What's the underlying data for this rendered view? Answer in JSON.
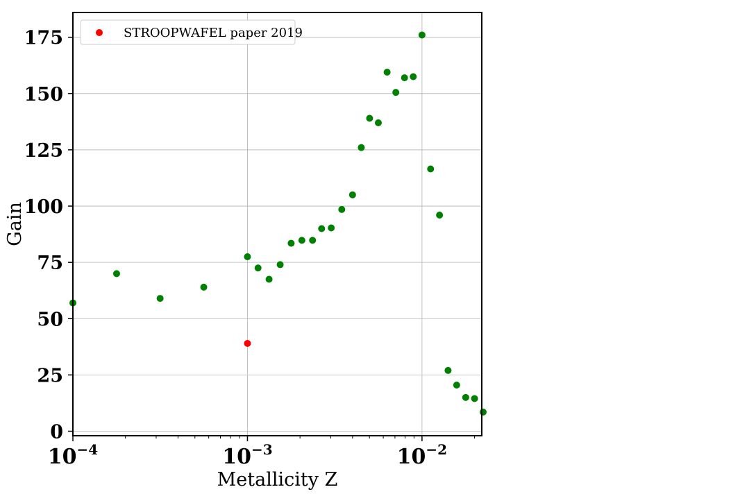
{
  "chart_data": {
    "type": "scatter",
    "xlabel": "Metallicity Z",
    "ylabel": "Gain",
    "xscale": "log",
    "xlim": [
      0.0001,
      0.022
    ],
    "ylim": [
      -2,
      186
    ],
    "grid": true,
    "legend": {
      "placement": "top-left",
      "entries": [
        "STROOPWAFEL paper 2019"
      ]
    },
    "x_ticks": [
      {
        "value": 0.0001,
        "base": "10",
        "exp": "−4"
      },
      {
        "value": 0.001,
        "base": "10",
        "exp": "−3"
      },
      {
        "value": 0.01,
        "base": "10",
        "exp": "−2"
      }
    ],
    "y_ticks": [
      0,
      25,
      50,
      75,
      100,
      125,
      150,
      175
    ],
    "series": [
      {
        "color": "#008000",
        "points": [
          [
            0.0001,
            57
          ],
          [
            0.000178,
            70
          ],
          [
            0.000316,
            59
          ],
          [
            0.000562,
            64
          ],
          [
            0.001,
            77.5
          ],
          [
            0.00115,
            72.5
          ],
          [
            0.00133,
            67.5
          ],
          [
            0.00154,
            74
          ],
          [
            0.00178,
            83.5
          ],
          [
            0.00205,
            84.8
          ],
          [
            0.00236,
            84.8
          ],
          [
            0.00266,
            90
          ],
          [
            0.00302,
            90.3
          ],
          [
            0.00347,
            98.5
          ],
          [
            0.004,
            105
          ],
          [
            0.00449,
            126
          ],
          [
            0.00501,
            139
          ],
          [
            0.00562,
            137
          ],
          [
            0.00631,
            159.5
          ],
          [
            0.00708,
            150.5
          ],
          [
            0.00794,
            157
          ],
          [
            0.00891,
            157.5
          ],
          [
            0.01,
            176
          ],
          [
            0.0112,
            116.5
          ],
          [
            0.0126,
            96
          ],
          [
            0.0141,
            27
          ],
          [
            0.0158,
            20.5
          ],
          [
            0.0178,
            15
          ],
          [
            0.02,
            14.5
          ],
          [
            0.0224,
            8.5
          ]
        ]
      },
      {
        "name": "STROOPWAFEL paper 2019",
        "color": "#ff0000",
        "points": [
          [
            0.001,
            39
          ]
        ]
      }
    ]
  }
}
